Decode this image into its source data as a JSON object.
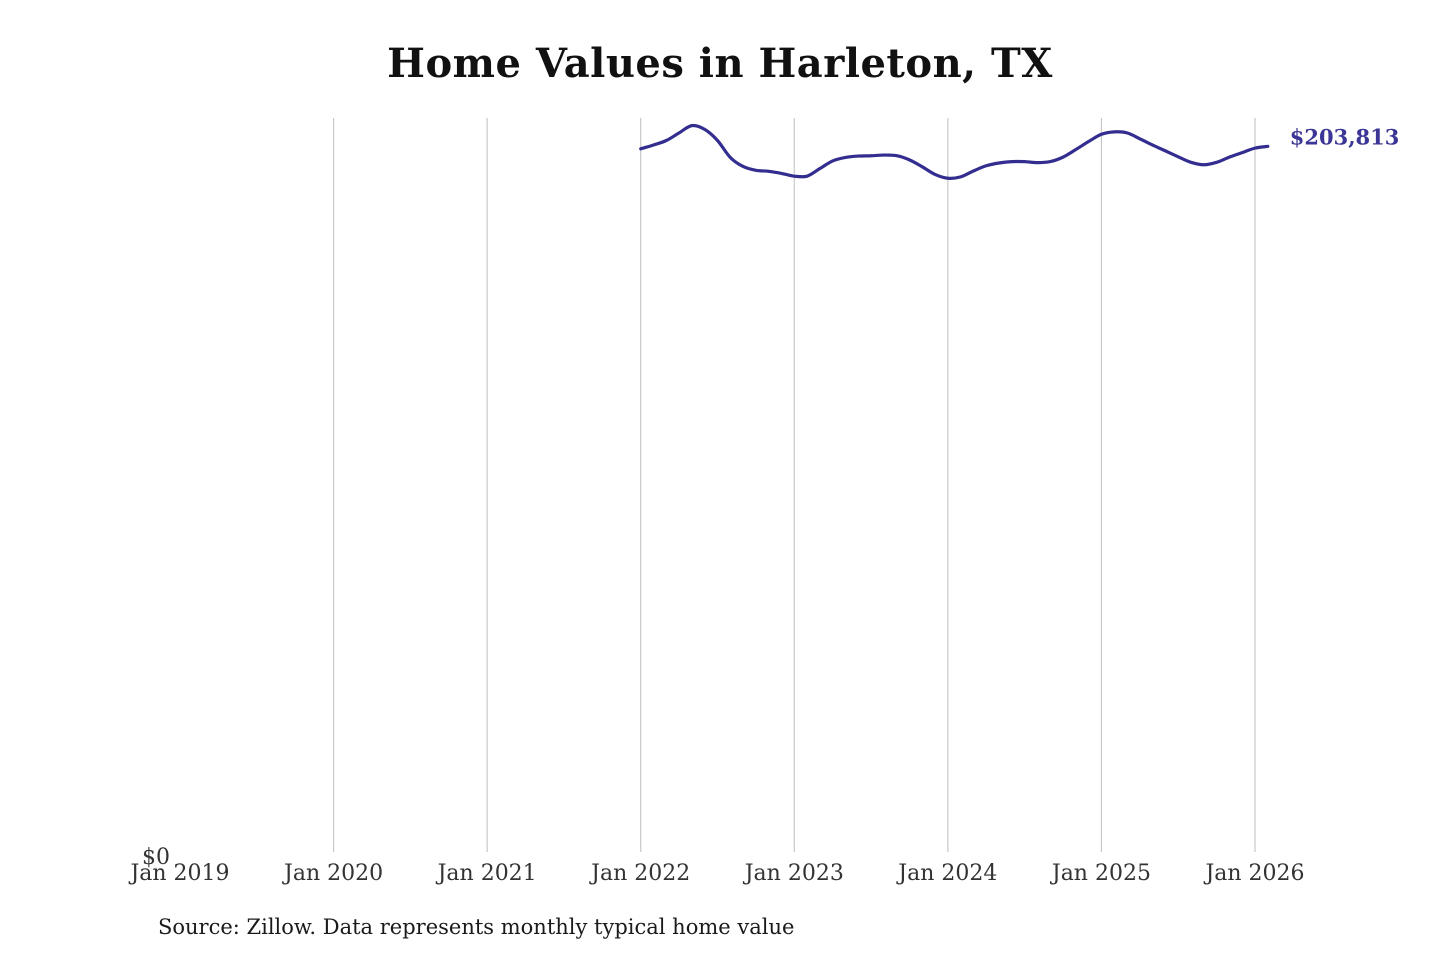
{
  "colors": {
    "line": "#332d8f",
    "grid": "#c8c8c8",
    "end_label": "#3b3695"
  },
  "chart_data": {
    "type": "line",
    "title": "Home Values in Harleton, TX",
    "source": "Source: Zillow. Data represents monthly typical home value",
    "x_ticks": [
      "Jan 2019",
      "Jan 2020",
      "Jan 2021",
      "Jan 2022",
      "Jan 2023",
      "Jan 2024",
      "Jan 2025",
      "Jan 2026"
    ],
    "y_ticks": [
      "$0"
    ],
    "xlim": [
      "2019-01",
      "2026-02"
    ],
    "ylim": [
      0,
      212000
    ],
    "grid": "vertical",
    "end_label": "$203,813",
    "series": [
      {
        "x": [
          "2022-01",
          "2022-02",
          "2022-03",
          "2022-04",
          "2022-05",
          "2022-06",
          "2022-07",
          "2022-08",
          "2022-09",
          "2022-10",
          "2022-11",
          "2022-12",
          "2023-01",
          "2023-02",
          "2023-03",
          "2023-04",
          "2023-05",
          "2023-06",
          "2023-07",
          "2023-08",
          "2023-09",
          "2023-10",
          "2023-11",
          "2023-12",
          "2024-01",
          "2024-02",
          "2024-03",
          "2024-04",
          "2024-05",
          "2024-06",
          "2024-07",
          "2024-08",
          "2024-09",
          "2024-10",
          "2024-11",
          "2024-12",
          "2025-01",
          "2025-02",
          "2025-03",
          "2025-04",
          "2025-05",
          "2025-06",
          "2025-07",
          "2025-08",
          "2025-09",
          "2025-10",
          "2025-11",
          "2025-12",
          "2026-01",
          "2026-02"
        ],
        "values": [
          203100,
          204200,
          205500,
          207700,
          209800,
          208700,
          205500,
          200600,
          198000,
          196900,
          196600,
          196000,
          195200,
          195200,
          197400,
          199600,
          200600,
          201000,
          201100,
          201300,
          201100,
          199900,
          197900,
          195700,
          194600,
          195000,
          196700,
          198200,
          199000,
          199400,
          199400,
          199100,
          199400,
          200700,
          202900,
          205200,
          207300,
          208000,
          207700,
          206000,
          204200,
          202500,
          200800,
          199200,
          198500,
          199200,
          200700,
          202000,
          203300,
          203813
        ]
      }
    ]
  }
}
